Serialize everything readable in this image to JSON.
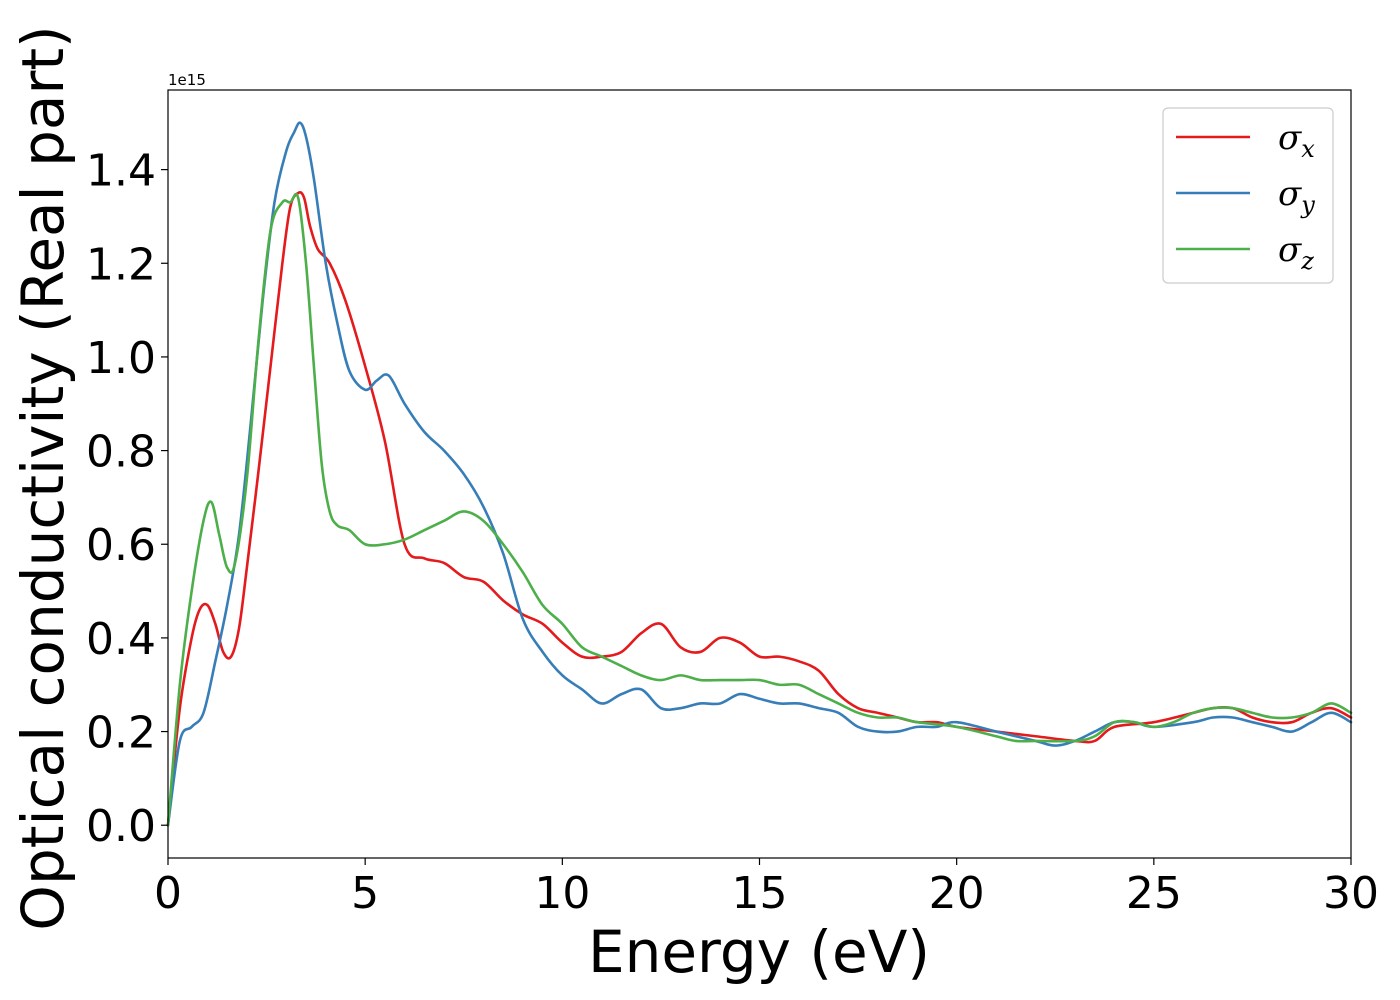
{
  "chart_data": {
    "type": "line",
    "xlabel": "Energy (eV)",
    "ylabel": "Optical conductivity (Real part)",
    "y_offset_text": "1e15",
    "xlim": [
      0,
      30
    ],
    "ylim": [
      -0.07,
      1.57
    ],
    "xticks": [
      0,
      5,
      10,
      15,
      20,
      25,
      30
    ],
    "xtick_labels": [
      "0",
      "5",
      "10",
      "15",
      "20",
      "25",
      "30"
    ],
    "yticks": [
      0.0,
      0.2,
      0.4,
      0.6,
      0.8,
      1.0,
      1.2,
      1.4
    ],
    "ytick_labels": [
      "0.0",
      "0.2",
      "0.4",
      "0.6",
      "0.8",
      "1.0",
      "1.2",
      "1.4"
    ],
    "grid": false,
    "legend_position": "top-right",
    "series": [
      {
        "name": "σ_x",
        "legend_base": "σ",
        "legend_sub": "x",
        "color": "#e41a1c",
        "x": [
          0,
          0.3,
          0.6,
          0.8,
          1.0,
          1.2,
          1.4,
          1.6,
          1.8,
          2.0,
          2.3,
          2.6,
          2.9,
          3.1,
          3.3,
          3.45,
          3.6,
          3.8,
          4.1,
          4.5,
          5.0,
          5.5,
          6.0,
          6.5,
          7.0,
          7.5,
          8.0,
          8.5,
          9.0,
          9.5,
          10.0,
          10.5,
          11.0,
          11.5,
          12.0,
          12.5,
          13.0,
          13.5,
          14.0,
          14.5,
          15.0,
          15.5,
          16.0,
          16.5,
          17.0,
          17.5,
          18.0,
          18.5,
          19.0,
          19.5,
          20.0,
          21.0,
          22.0,
          23.0,
          23.5,
          24.0,
          25.0,
          26.0,
          26.5,
          27.0,
          27.5,
          28.0,
          28.5,
          29.0,
          29.5,
          30.0
        ],
        "y": [
          0.0,
          0.25,
          0.4,
          0.46,
          0.47,
          0.43,
          0.37,
          0.36,
          0.42,
          0.55,
          0.76,
          0.98,
          1.2,
          1.32,
          1.35,
          1.34,
          1.28,
          1.23,
          1.2,
          1.12,
          0.98,
          0.82,
          0.6,
          0.57,
          0.56,
          0.53,
          0.52,
          0.48,
          0.45,
          0.43,
          0.39,
          0.36,
          0.36,
          0.37,
          0.41,
          0.43,
          0.38,
          0.37,
          0.4,
          0.39,
          0.36,
          0.36,
          0.35,
          0.33,
          0.28,
          0.25,
          0.24,
          0.23,
          0.22,
          0.22,
          0.21,
          0.2,
          0.19,
          0.18,
          0.18,
          0.21,
          0.22,
          0.24,
          0.25,
          0.25,
          0.23,
          0.22,
          0.22,
          0.24,
          0.25,
          0.23
        ]
      },
      {
        "name": "σ_y",
        "legend_base": "σ",
        "legend_sub": "y",
        "color": "#377eb8",
        "x": [
          0,
          0.3,
          0.6,
          0.9,
          1.2,
          1.5,
          1.8,
          2.1,
          2.4,
          2.7,
          3.0,
          3.2,
          3.35,
          3.5,
          3.7,
          4.0,
          4.3,
          4.6,
          5.0,
          5.3,
          5.6,
          6.0,
          6.5,
          7.0,
          7.5,
          8.0,
          8.5,
          9.0,
          9.5,
          10.0,
          10.5,
          11.0,
          11.5,
          12.0,
          12.5,
          13.0,
          13.5,
          14.0,
          14.5,
          15.0,
          15.5,
          16.0,
          16.5,
          17.0,
          17.5,
          18.0,
          18.5,
          19.0,
          19.5,
          20.0,
          21.0,
          22.0,
          22.5,
          23.0,
          23.5,
          24.0,
          24.5,
          25.0,
          26.0,
          26.5,
          27.0,
          27.5,
          28.0,
          28.5,
          29.0,
          29.5,
          30.0
        ],
        "y": [
          0.0,
          0.18,
          0.21,
          0.24,
          0.35,
          0.47,
          0.62,
          0.86,
          1.12,
          1.33,
          1.44,
          1.48,
          1.5,
          1.47,
          1.38,
          1.2,
          1.07,
          0.97,
          0.93,
          0.95,
          0.96,
          0.9,
          0.84,
          0.8,
          0.75,
          0.68,
          0.58,
          0.44,
          0.37,
          0.32,
          0.29,
          0.26,
          0.28,
          0.29,
          0.25,
          0.25,
          0.26,
          0.26,
          0.28,
          0.27,
          0.26,
          0.26,
          0.25,
          0.24,
          0.21,
          0.2,
          0.2,
          0.21,
          0.21,
          0.22,
          0.2,
          0.18,
          0.17,
          0.18,
          0.2,
          0.22,
          0.22,
          0.21,
          0.22,
          0.23,
          0.23,
          0.22,
          0.21,
          0.2,
          0.22,
          0.24,
          0.22
        ]
      },
      {
        "name": "σ_z",
        "legend_base": "σ",
        "legend_sub": "z",
        "color": "#4daf4a",
        "x": [
          0,
          0.3,
          0.6,
          0.9,
          1.1,
          1.3,
          1.5,
          1.7,
          2.0,
          2.3,
          2.6,
          2.9,
          3.1,
          3.3,
          3.5,
          3.7,
          3.9,
          4.1,
          4.3,
          4.6,
          5.0,
          5.5,
          6.0,
          6.5,
          7.0,
          7.5,
          8.0,
          8.5,
          9.0,
          9.5,
          10.0,
          10.5,
          11.0,
          11.5,
          12.0,
          12.5,
          13.0,
          13.5,
          14.0,
          14.5,
          15.0,
          15.5,
          16.0,
          16.5,
          17.0,
          17.5,
          18.0,
          18.5,
          19.0,
          20.0,
          21.0,
          21.5,
          22.0,
          23.0,
          23.5,
          24.0,
          24.5,
          25.0,
          25.5,
          26.0,
          26.5,
          27.0,
          27.5,
          28.0,
          28.5,
          29.0,
          29.5,
          30.0
        ],
        "y": [
          0.0,
          0.3,
          0.5,
          0.65,
          0.69,
          0.62,
          0.55,
          0.56,
          0.74,
          1.04,
          1.27,
          1.33,
          1.33,
          1.34,
          1.2,
          0.98,
          0.77,
          0.67,
          0.64,
          0.63,
          0.6,
          0.6,
          0.61,
          0.63,
          0.65,
          0.67,
          0.65,
          0.6,
          0.54,
          0.47,
          0.43,
          0.38,
          0.36,
          0.34,
          0.32,
          0.31,
          0.32,
          0.31,
          0.31,
          0.31,
          0.31,
          0.3,
          0.3,
          0.28,
          0.26,
          0.24,
          0.23,
          0.23,
          0.22,
          0.21,
          0.19,
          0.18,
          0.18,
          0.18,
          0.19,
          0.22,
          0.22,
          0.21,
          0.22,
          0.24,
          0.25,
          0.25,
          0.24,
          0.23,
          0.23,
          0.24,
          0.26,
          0.24
        ]
      }
    ]
  }
}
